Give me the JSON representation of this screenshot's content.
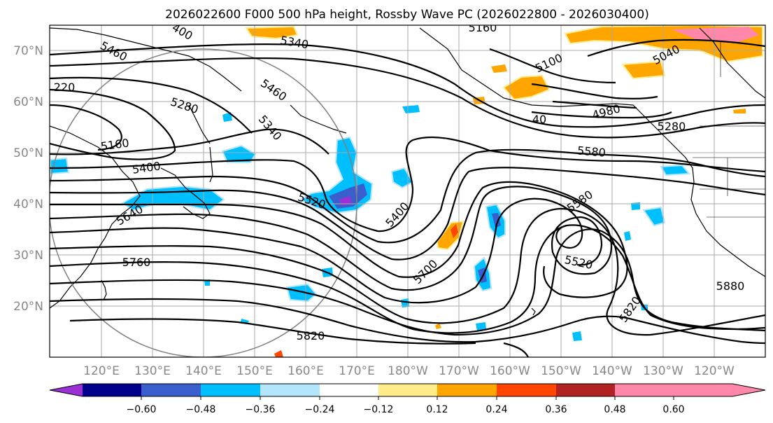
{
  "title": "2026022600 F000 500 hPa height, Rossby Wave PC (2026022800 - 2026030400)",
  "lat_labels": [
    "70°N",
    "60°N",
    "50°N",
    "40°N",
    "30°N",
    "20°N"
  ],
  "lon_labels": [
    "120°E",
    "130°E",
    "140°E",
    "150°E",
    "160°E",
    "170°E",
    "180°W",
    "170°W",
    "160°W",
    "150°W",
    "140°W",
    "130°W",
    "120°W"
  ],
  "contour_labels": [
    "5160",
    "5460",
    "400",
    "5340",
    "220",
    "5460",
    "5280",
    "5340",
    "5160",
    "5400",
    "5640",
    "5760",
    "5520",
    "5400",
    "5820",
    "5700",
    "5580",
    "5580",
    "5520",
    "5820",
    "5880",
    "5100",
    "5040",
    "4980",
    "5280",
    "40"
  ],
  "colorbar": {
    "tick_labels": [
      "−0.60",
      "−0.48",
      "−0.36",
      "−0.24",
      "−0.12",
      "0.12",
      "0.24",
      "0.36",
      "0.48",
      "0.60"
    ],
    "colors": [
      "#9b30d6",
      "#00008b",
      "#3a5fcd",
      "#00bfff",
      "#b3e5fc",
      "#ffffff",
      "#ffec8b",
      "#ffa500",
      "#ff4500",
      "#b22222",
      "#ff88aa"
    ]
  },
  "chart_data": {
    "type": "map-contour",
    "title": "2026022600 F000 500 hPa height, Rossby Wave PC (2026022800 - 2026030400)",
    "field": "500 hPa geopotential height (m)",
    "shading": "Rossby Wave PC",
    "lat_range": [
      10,
      75
    ],
    "lon_range_label": "115°E to 115°W",
    "contour_levels": [
      4980,
      5040,
      5100,
      5160,
      5220,
      5280,
      5340,
      5400,
      5460,
      5520,
      5580,
      5640,
      5700,
      5760,
      5820,
      5880
    ],
    "color_levels": [
      -0.6,
      -0.48,
      -0.36,
      -0.24,
      -0.12,
      0.12,
      0.24,
      0.36,
      0.48,
      0.6
    ]
  }
}
